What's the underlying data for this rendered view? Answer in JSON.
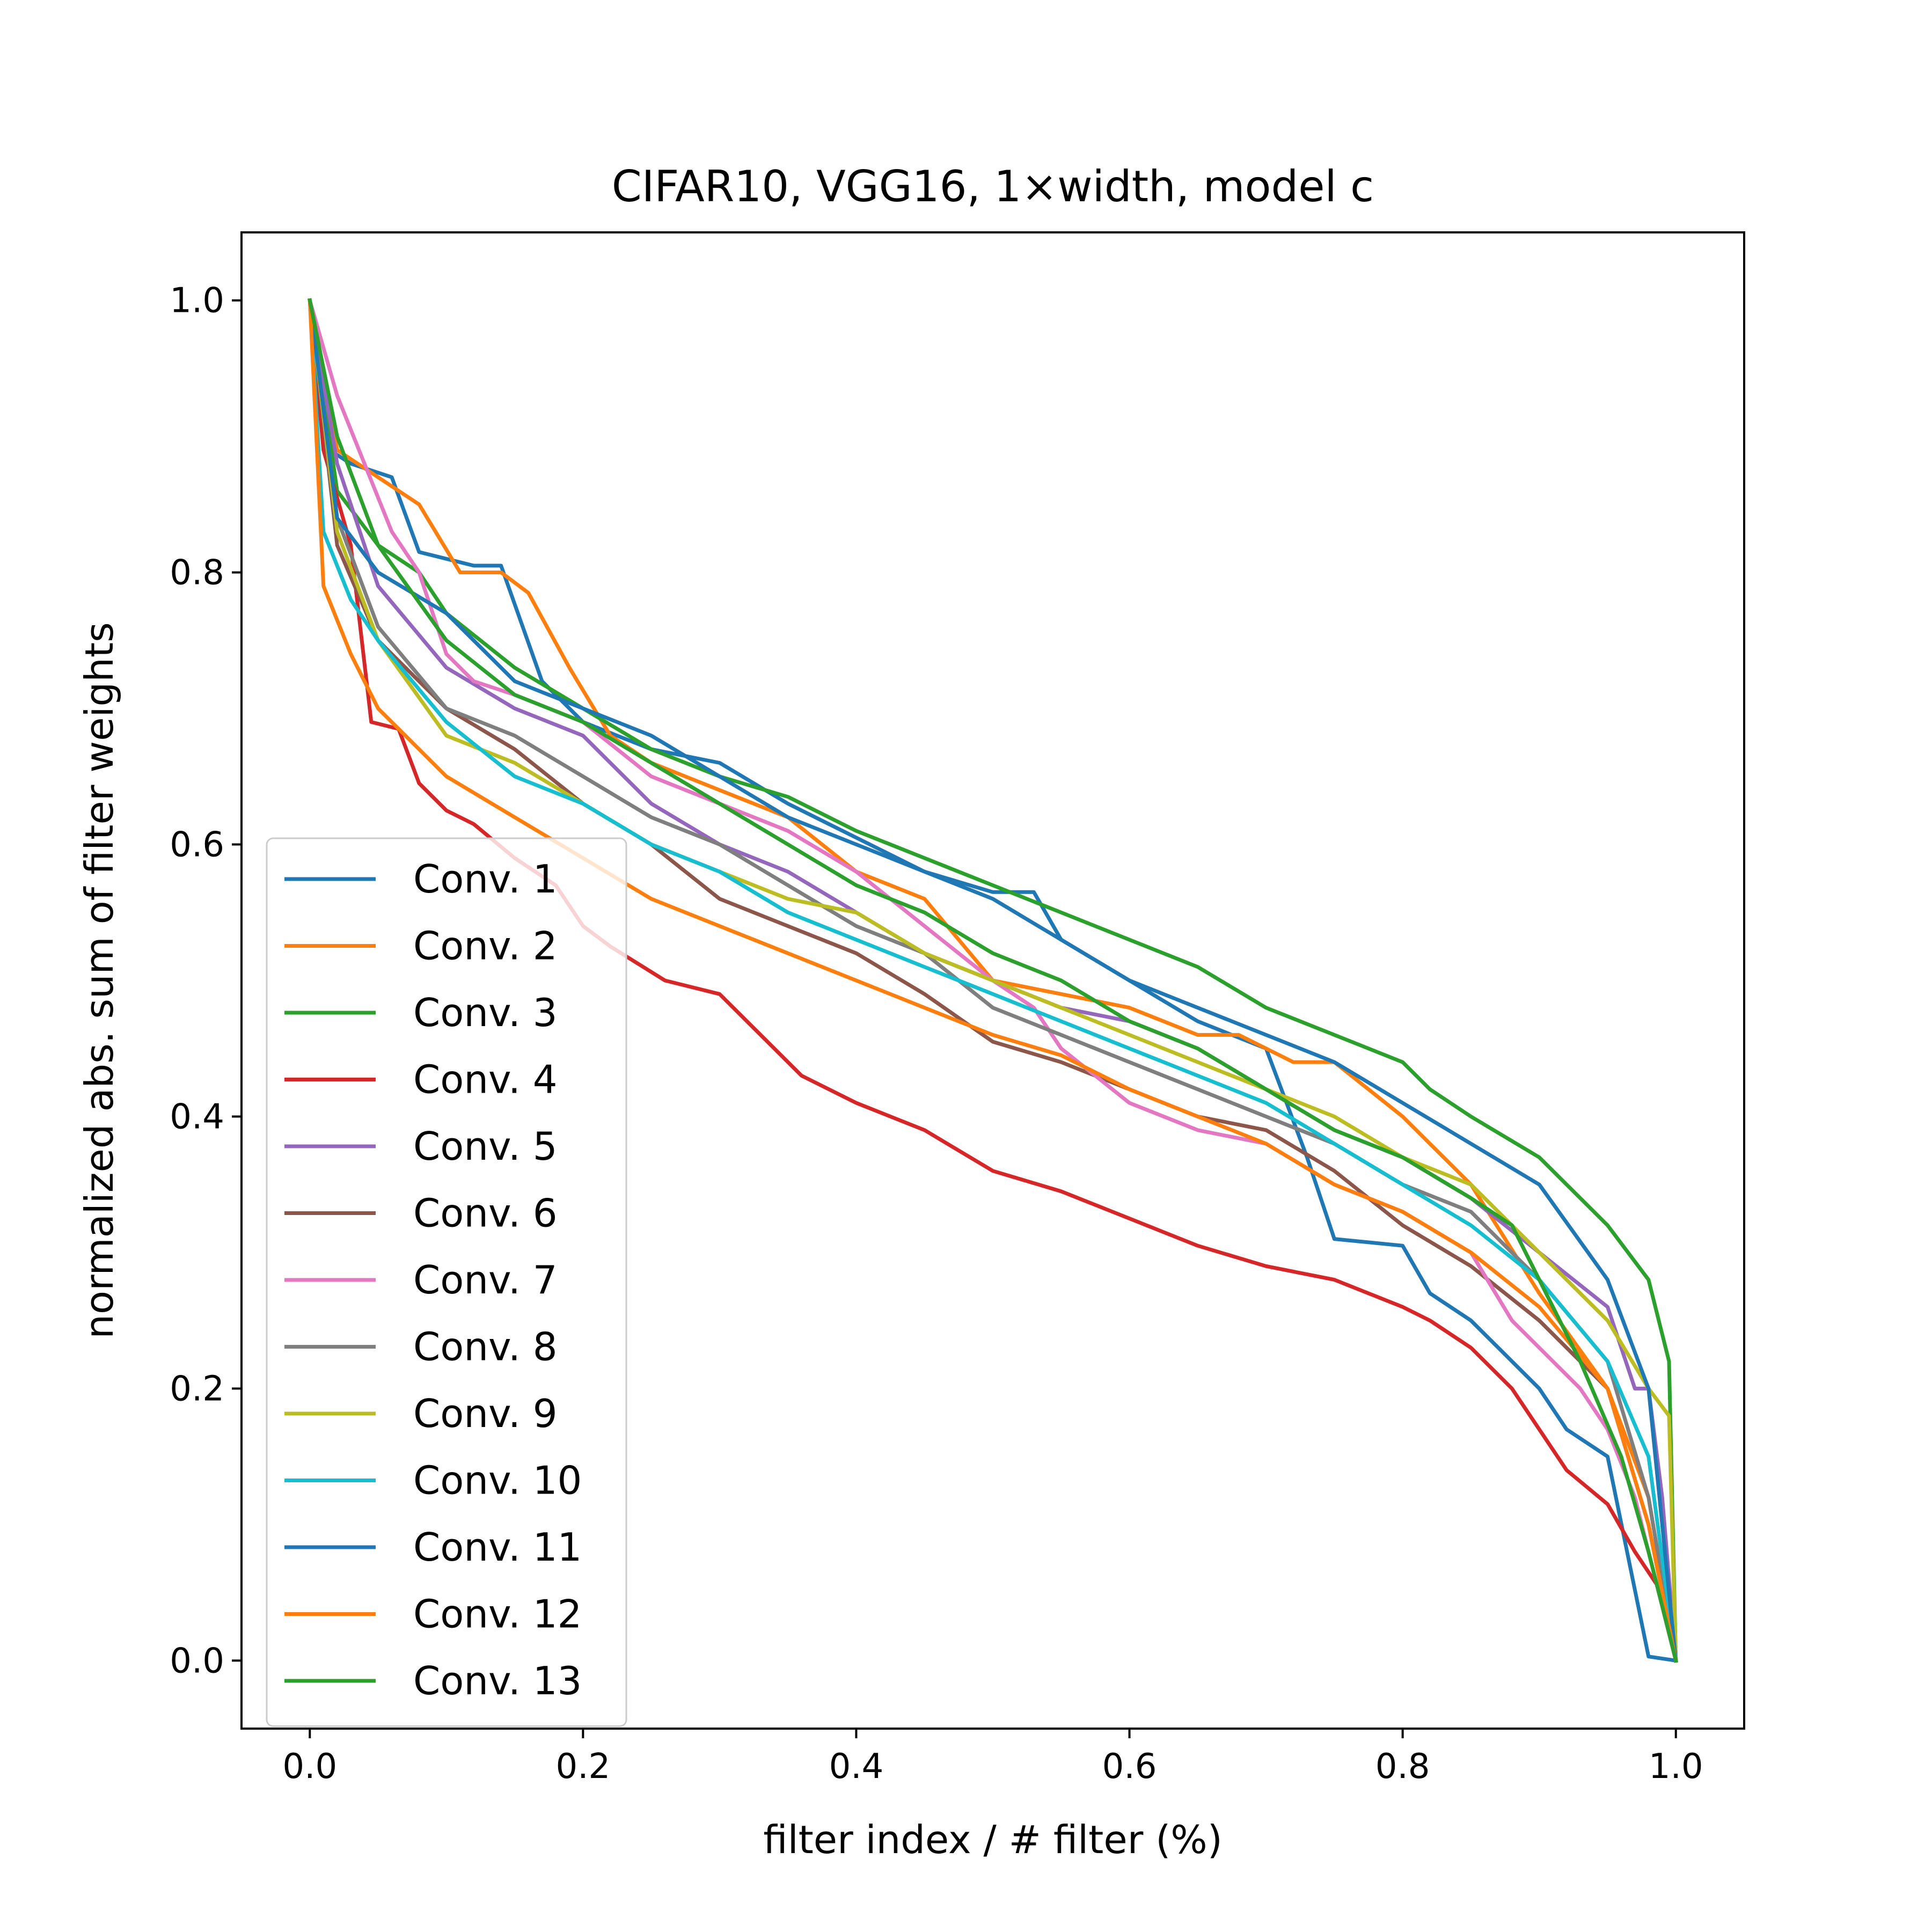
{
  "chart_data": {
    "type": "line",
    "title": "CIFAR10, VGG16, 1×width, model c",
    "xlabel": "filter index / # filter (%)",
    "ylabel": "normalized abs. sum of filter weights",
    "xlim": [
      -0.05,
      1.05
    ],
    "ylim": [
      -0.05,
      1.05
    ],
    "xticks": [
      "0.0",
      "0.2",
      "0.4",
      "0.6",
      "0.8",
      "1.0"
    ],
    "yticks": [
      "0.0",
      "0.2",
      "0.4",
      "0.6",
      "0.8",
      "1.0"
    ],
    "grid": false,
    "legend_position": "lower-left",
    "series": [
      {
        "name": "Conv. 1",
        "color": "#1f77b4",
        "x": [
          0.0,
          0.016,
          0.03,
          0.06,
          0.08,
          0.1,
          0.12,
          0.14,
          0.17,
          0.2,
          0.25,
          0.3,
          0.35,
          0.4,
          0.45,
          0.5,
          0.53,
          0.55,
          0.6,
          0.65,
          0.7,
          0.73,
          0.75,
          0.8,
          0.82,
          0.85,
          0.88,
          0.9,
          0.92,
          0.95,
          0.98,
          1.0
        ],
        "y": [
          1.0,
          0.889,
          0.88,
          0.87,
          0.815,
          0.81,
          0.805,
          0.805,
          0.72,
          0.69,
          0.67,
          0.66,
          0.63,
          0.605,
          0.58,
          0.565,
          0.565,
          0.53,
          0.5,
          0.47,
          0.45,
          0.37,
          0.31,
          0.305,
          0.27,
          0.25,
          0.22,
          0.2,
          0.17,
          0.15,
          0.003,
          0.0
        ]
      },
      {
        "name": "Conv. 2",
        "color": "#ff7f0e",
        "x": [
          0.0,
          0.02,
          0.05,
          0.08,
          0.11,
          0.14,
          0.16,
          0.19,
          0.22,
          0.25,
          0.3,
          0.35,
          0.4,
          0.45,
          0.5,
          0.55,
          0.6,
          0.65,
          0.68,
          0.72,
          0.75,
          0.8,
          0.85,
          0.9,
          0.95,
          0.98,
          1.0
        ],
        "y": [
          1.0,
          0.89,
          0.87,
          0.85,
          0.8,
          0.8,
          0.785,
          0.73,
          0.68,
          0.66,
          0.64,
          0.62,
          0.58,
          0.56,
          0.5,
          0.49,
          0.48,
          0.46,
          0.46,
          0.44,
          0.44,
          0.4,
          0.35,
          0.27,
          0.2,
          0.12,
          0.0
        ]
      },
      {
        "name": "Conv. 3",
        "color": "#2ca02c",
        "x": [
          0.0,
          0.02,
          0.05,
          0.08,
          0.1,
          0.15,
          0.2,
          0.25,
          0.3,
          0.35,
          0.4,
          0.45,
          0.5,
          0.55,
          0.6,
          0.65,
          0.7,
          0.75,
          0.8,
          0.82,
          0.85,
          0.9,
          0.95,
          0.98,
          0.995,
          1.0
        ],
        "y": [
          1.0,
          0.86,
          0.82,
          0.8,
          0.77,
          0.73,
          0.7,
          0.67,
          0.65,
          0.635,
          0.61,
          0.59,
          0.57,
          0.55,
          0.53,
          0.51,
          0.48,
          0.46,
          0.44,
          0.42,
          0.4,
          0.37,
          0.32,
          0.28,
          0.22,
          0.0
        ]
      },
      {
        "name": "Conv. 4",
        "color": "#d62728",
        "x": [
          0.0,
          0.01,
          0.03,
          0.045,
          0.065,
          0.08,
          0.1,
          0.12,
          0.15,
          0.18,
          0.2,
          0.22,
          0.26,
          0.3,
          0.33,
          0.36,
          0.4,
          0.45,
          0.5,
          0.55,
          0.6,
          0.65,
          0.7,
          0.75,
          0.8,
          0.82,
          0.85,
          0.88,
          0.9,
          0.92,
          0.95,
          0.97,
          0.99,
          1.0
        ],
        "y": [
          1.0,
          0.89,
          0.82,
          0.69,
          0.685,
          0.645,
          0.625,
          0.615,
          0.59,
          0.57,
          0.54,
          0.525,
          0.5,
          0.49,
          0.46,
          0.43,
          0.41,
          0.39,
          0.36,
          0.345,
          0.325,
          0.305,
          0.29,
          0.28,
          0.26,
          0.25,
          0.23,
          0.2,
          0.17,
          0.14,
          0.115,
          0.08,
          0.05,
          0.0
        ]
      },
      {
        "name": "Conv. 5",
        "color": "#9467bd",
        "x": [
          0.0,
          0.02,
          0.05,
          0.1,
          0.15,
          0.2,
          0.25,
          0.3,
          0.35,
          0.4,
          0.45,
          0.5,
          0.55,
          0.6,
          0.65,
          0.7,
          0.75,
          0.8,
          0.85,
          0.9,
          0.95,
          0.97,
          0.98,
          0.99,
          1.0
        ],
        "y": [
          1.0,
          0.88,
          0.79,
          0.73,
          0.7,
          0.68,
          0.63,
          0.6,
          0.58,
          0.55,
          0.52,
          0.5,
          0.48,
          0.47,
          0.45,
          0.42,
          0.39,
          0.37,
          0.34,
          0.3,
          0.26,
          0.2,
          0.2,
          0.12,
          0.0
        ]
      },
      {
        "name": "Conv. 6",
        "color": "#8c564b",
        "x": [
          0.0,
          0.02,
          0.05,
          0.1,
          0.15,
          0.2,
          0.25,
          0.3,
          0.35,
          0.4,
          0.45,
          0.5,
          0.55,
          0.6,
          0.65,
          0.7,
          0.75,
          0.8,
          0.85,
          0.9,
          0.95,
          0.98,
          1.0
        ],
        "y": [
          1.0,
          0.82,
          0.75,
          0.7,
          0.67,
          0.63,
          0.6,
          0.56,
          0.54,
          0.52,
          0.49,
          0.455,
          0.44,
          0.42,
          0.4,
          0.39,
          0.36,
          0.32,
          0.29,
          0.25,
          0.2,
          0.1,
          0.0
        ]
      },
      {
        "name": "Conv. 7",
        "color": "#e377c2",
        "x": [
          0.0,
          0.02,
          0.04,
          0.06,
          0.08,
          0.1,
          0.12,
          0.15,
          0.2,
          0.25,
          0.3,
          0.35,
          0.4,
          0.45,
          0.5,
          0.53,
          0.55,
          0.6,
          0.65,
          0.7,
          0.75,
          0.8,
          0.85,
          0.88,
          0.9,
          0.93,
          0.95,
          0.97,
          0.98,
          1.0
        ],
        "y": [
          1.0,
          0.93,
          0.88,
          0.83,
          0.8,
          0.74,
          0.72,
          0.71,
          0.69,
          0.65,
          0.63,
          0.61,
          0.58,
          0.54,
          0.5,
          0.48,
          0.45,
          0.41,
          0.39,
          0.38,
          0.35,
          0.33,
          0.3,
          0.25,
          0.23,
          0.2,
          0.17,
          0.12,
          0.08,
          0.0
        ]
      },
      {
        "name": "Conv. 8",
        "color": "#7f7f7f",
        "x": [
          0.0,
          0.02,
          0.05,
          0.1,
          0.15,
          0.2,
          0.25,
          0.3,
          0.35,
          0.4,
          0.45,
          0.5,
          0.55,
          0.6,
          0.65,
          0.7,
          0.75,
          0.8,
          0.85,
          0.9,
          0.95,
          0.98,
          1.0
        ],
        "y": [
          1.0,
          0.84,
          0.76,
          0.7,
          0.68,
          0.65,
          0.62,
          0.6,
          0.57,
          0.54,
          0.52,
          0.48,
          0.46,
          0.44,
          0.42,
          0.4,
          0.38,
          0.35,
          0.33,
          0.28,
          0.22,
          0.12,
          0.0
        ]
      },
      {
        "name": "Conv. 9",
        "color": "#bcbd22",
        "x": [
          0.0,
          0.02,
          0.05,
          0.1,
          0.15,
          0.2,
          0.25,
          0.3,
          0.35,
          0.4,
          0.45,
          0.5,
          0.55,
          0.6,
          0.65,
          0.7,
          0.75,
          0.8,
          0.85,
          0.9,
          0.95,
          0.98,
          0.995,
          1.0
        ],
        "y": [
          1.0,
          0.83,
          0.75,
          0.68,
          0.66,
          0.63,
          0.6,
          0.58,
          0.56,
          0.55,
          0.52,
          0.5,
          0.48,
          0.46,
          0.44,
          0.42,
          0.4,
          0.37,
          0.35,
          0.3,
          0.25,
          0.2,
          0.18,
          0.0
        ]
      },
      {
        "name": "Conv. 10",
        "color": "#17becf",
        "x": [
          0.0,
          0.01,
          0.03,
          0.05,
          0.1,
          0.15,
          0.2,
          0.25,
          0.3,
          0.35,
          0.4,
          0.45,
          0.5,
          0.55,
          0.6,
          0.65,
          0.7,
          0.75,
          0.8,
          0.85,
          0.9,
          0.95,
          0.98,
          1.0
        ],
        "y": [
          1.0,
          0.83,
          0.78,
          0.75,
          0.69,
          0.65,
          0.63,
          0.6,
          0.58,
          0.55,
          0.53,
          0.51,
          0.49,
          0.47,
          0.45,
          0.43,
          0.41,
          0.38,
          0.35,
          0.32,
          0.28,
          0.22,
          0.15,
          0.0
        ]
      },
      {
        "name": "Conv. 11",
        "color": "#1f77b4",
        "x": [
          0.0,
          0.02,
          0.05,
          0.1,
          0.15,
          0.2,
          0.25,
          0.3,
          0.35,
          0.4,
          0.45,
          0.5,
          0.55,
          0.6,
          0.65,
          0.7,
          0.75,
          0.8,
          0.85,
          0.9,
          0.95,
          0.98,
          1.0
        ],
        "y": [
          1.0,
          0.84,
          0.8,
          0.77,
          0.72,
          0.7,
          0.68,
          0.65,
          0.62,
          0.6,
          0.58,
          0.56,
          0.53,
          0.5,
          0.48,
          0.46,
          0.44,
          0.41,
          0.38,
          0.35,
          0.28,
          0.2,
          0.0
        ]
      },
      {
        "name": "Conv. 12",
        "color": "#ff7f0e",
        "x": [
          0.0,
          0.01,
          0.03,
          0.05,
          0.1,
          0.15,
          0.2,
          0.25,
          0.3,
          0.35,
          0.4,
          0.45,
          0.5,
          0.55,
          0.6,
          0.65,
          0.7,
          0.75,
          0.8,
          0.85,
          0.9,
          0.95,
          0.98,
          1.0
        ],
        "y": [
          1.0,
          0.79,
          0.74,
          0.7,
          0.65,
          0.62,
          0.59,
          0.56,
          0.54,
          0.52,
          0.5,
          0.48,
          0.46,
          0.445,
          0.42,
          0.4,
          0.38,
          0.35,
          0.33,
          0.3,
          0.26,
          0.2,
          0.1,
          0.0
        ]
      },
      {
        "name": "Conv. 13",
        "color": "#2ca02c",
        "x": [
          0.0,
          0.02,
          0.05,
          0.1,
          0.15,
          0.2,
          0.25,
          0.3,
          0.35,
          0.4,
          0.45,
          0.5,
          0.55,
          0.6,
          0.65,
          0.7,
          0.75,
          0.8,
          0.85,
          0.88,
          0.9,
          0.93,
          0.96,
          0.98,
          1.0
        ],
        "y": [
          1.0,
          0.9,
          0.82,
          0.75,
          0.71,
          0.69,
          0.66,
          0.63,
          0.6,
          0.57,
          0.55,
          0.52,
          0.5,
          0.47,
          0.45,
          0.42,
          0.39,
          0.37,
          0.34,
          0.32,
          0.28,
          0.22,
          0.15,
          0.08,
          0.0
        ]
      }
    ]
  }
}
